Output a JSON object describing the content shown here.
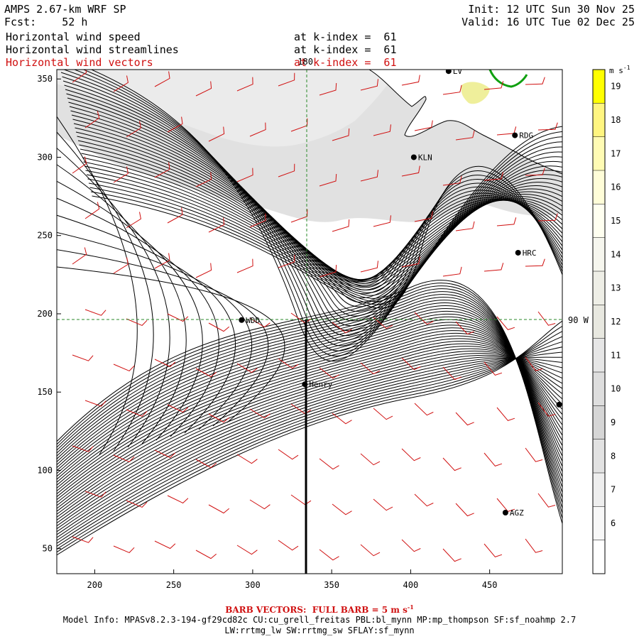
{
  "header": {
    "model": "AMPS 2.67-km WRF SP",
    "fcst_label": "Fcst:",
    "fcst_value": "52 h",
    "init": "Init: 12 UTC Sun 30 Nov 25",
    "valid": "Valid: 16 UTC Tue 02 Dec 25"
  },
  "fields": [
    {
      "name": "Horizontal wind speed",
      "level": "at k-index =  61"
    },
    {
      "name": "Horizontal wind streamlines",
      "level": "at k-index =  61"
    },
    {
      "name": "Horizontal wind vectors",
      "level": "at k-index =  61"
    }
  ],
  "map": {
    "x_ticks": [
      "200",
      "250",
      "300",
      "350",
      "400",
      "450"
    ],
    "y_ticks": [
      "50",
      "100",
      "150",
      "200",
      "250",
      "300",
      "350"
    ],
    "x_range": [
      176,
      496
    ],
    "y_range": [
      34,
      356
    ],
    "meridian_label": "180",
    "meridian_x": 333,
    "parallel_label": "90 W",
    "parallel_y": 196,
    "stations": [
      {
        "label": "RDG",
        "x": 466,
        "y": 314
      },
      {
        "label": "KLN",
        "x": 402,
        "y": 300
      },
      {
        "label": "HRC",
        "x": 468,
        "y": 239
      },
      {
        "label": "WDD",
        "x": 293,
        "y": 196
      },
      {
        "label": "Henry",
        "x": 333,
        "y": 155
      },
      {
        "label": "AGZ",
        "x": 460,
        "y": 73
      },
      {
        "label": "LV",
        "x": 424,
        "y": 355
      },
      {
        "label": "",
        "x": 494,
        "y": 142
      }
    ],
    "colors": {
      "barbs": "#d01010",
      "guides": "#2a8a2a",
      "terrain": "#dcdcdc",
      "terrain_light": "#ebebeb",
      "coast_green": "#10a010",
      "wind_hi": "#e8e870"
    }
  },
  "colorbar": {
    "unit": "m s",
    "unit_exp": "-1",
    "labels": [
      "19",
      "18",
      "17",
      "16",
      "15",
      "14",
      "13",
      "12",
      "11",
      "10",
      "9",
      "8",
      "7",
      "6"
    ],
    "colors": [
      "#ffff00",
      "#fff580",
      "#fffbb4",
      "#fffdd8",
      "#fffff0",
      "#f6f6ee",
      "#eeeee6",
      "#e8e8e0",
      "#e6e6e6",
      "#dedede",
      "#d6d6d6",
      "#e2e2e2",
      "#eeeeee",
      "#f8f8f8",
      "#ffffff"
    ]
  },
  "footer": {
    "barb_note": "BARB VECTORS:  FULL BARB = 5 m s",
    "barb_note_exp": "-1",
    "model_info": "Model Info: MPASv8.2.3-194-gf29cd82c CU:cu_grell_freitas PBL:bl_mynn MP:mp_thompson SF:sf_noahmp 2.7",
    "model_info2": "LW:rrtmg_lw SW:rrtmg_sw SFLAY:sf_mynn"
  }
}
